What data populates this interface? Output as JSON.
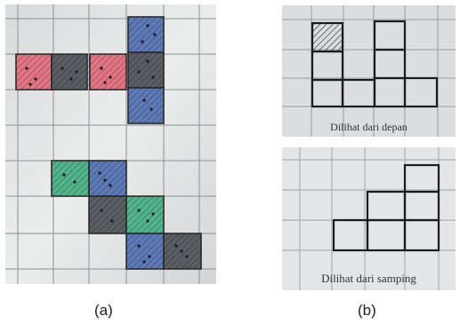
{
  "figure": {
    "label_a": "(a)",
    "label_b": "(b)"
  },
  "front_view": {
    "caption": "Dilihat dari depan"
  },
  "side_view": {
    "caption": "Dilihat dari samping"
  },
  "colors": {
    "red": "#e0707e",
    "black": "#555a60",
    "blue": "#5a78b4",
    "green": "#52b48a",
    "paper": "#e7e8e9",
    "grid": "#8a8c90"
  }
}
